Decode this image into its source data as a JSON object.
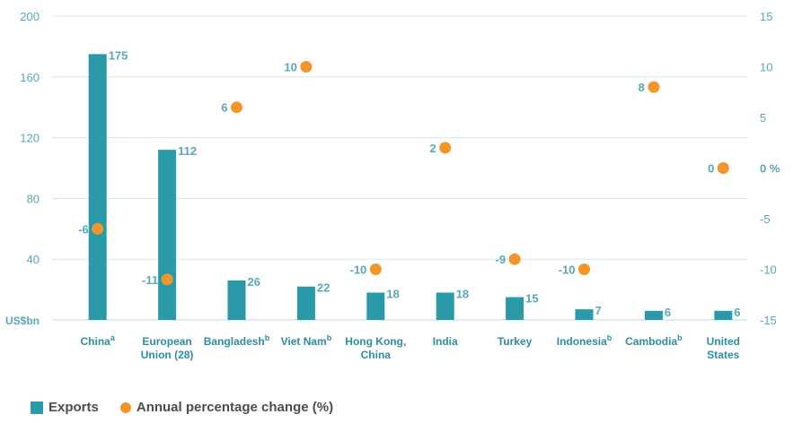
{
  "chart_data": {
    "type": "bar",
    "categories": [
      "China",
      "European Union (28)",
      "Bangladesh",
      "Viet Nam",
      "Hong Kong, China",
      "India",
      "Turkey",
      "Indonesia",
      "Cambodia",
      "United States"
    ],
    "category_lines": [
      [
        "China"
      ],
      [
        "European",
        "Union (28)"
      ],
      [
        "Bangladesh"
      ],
      [
        "Viet Nam"
      ],
      [
        "Hong Kong,",
        "China"
      ],
      [
        "India"
      ],
      [
        "Turkey"
      ],
      [
        "Indonesia"
      ],
      [
        "Cambodia"
      ],
      [
        "United",
        "States"
      ]
    ],
    "category_superscripts": [
      "a",
      "",
      "b",
      "b",
      "",
      "",
      "",
      "b",
      "b",
      ""
    ],
    "series": [
      {
        "name": "Exports",
        "axis": "left",
        "type": "bar",
        "values": [
          175,
          112,
          26,
          22,
          18,
          18,
          15,
          7,
          6,
          6
        ],
        "labels": [
          "175",
          "112",
          "26",
          "22",
          "18",
          "18",
          "15",
          "7",
          "6",
          "6"
        ]
      },
      {
        "name": "Annual percentage change (%)",
        "axis": "right",
        "type": "scatter",
        "values": [
          -6,
          -11,
          6,
          10,
          -10,
          2,
          -9,
          -10,
          8,
          0
        ],
        "labels": [
          "-6",
          "-11",
          "6",
          "10",
          "-10",
          "2",
          "-9",
          "-10",
          "8",
          "0"
        ]
      }
    ],
    "y_left": {
      "min": 0,
      "max": 200,
      "ticks": [
        0,
        40,
        80,
        120,
        160,
        200
      ],
      "unit_label": "US$bn"
    },
    "y_right": {
      "min": -15,
      "max": 15,
      "ticks": [
        -15,
        -10,
        -5,
        0,
        5,
        10,
        15
      ],
      "tick_labels": [
        "-15",
        "-10",
        "-5",
        "0 %",
        "5",
        "10",
        "15"
      ]
    },
    "colors": {
      "bar": "#2a9aa8",
      "dot": "#f4952a",
      "grid": "#d6e7ec",
      "text": "#5aa7b8",
      "category_text": "#2b8ea4"
    },
    "legend_position": "bottom-left",
    "grid": true
  },
  "legend": {
    "exports_label": "Exports",
    "change_label": "Annual percentage change (%)"
  }
}
